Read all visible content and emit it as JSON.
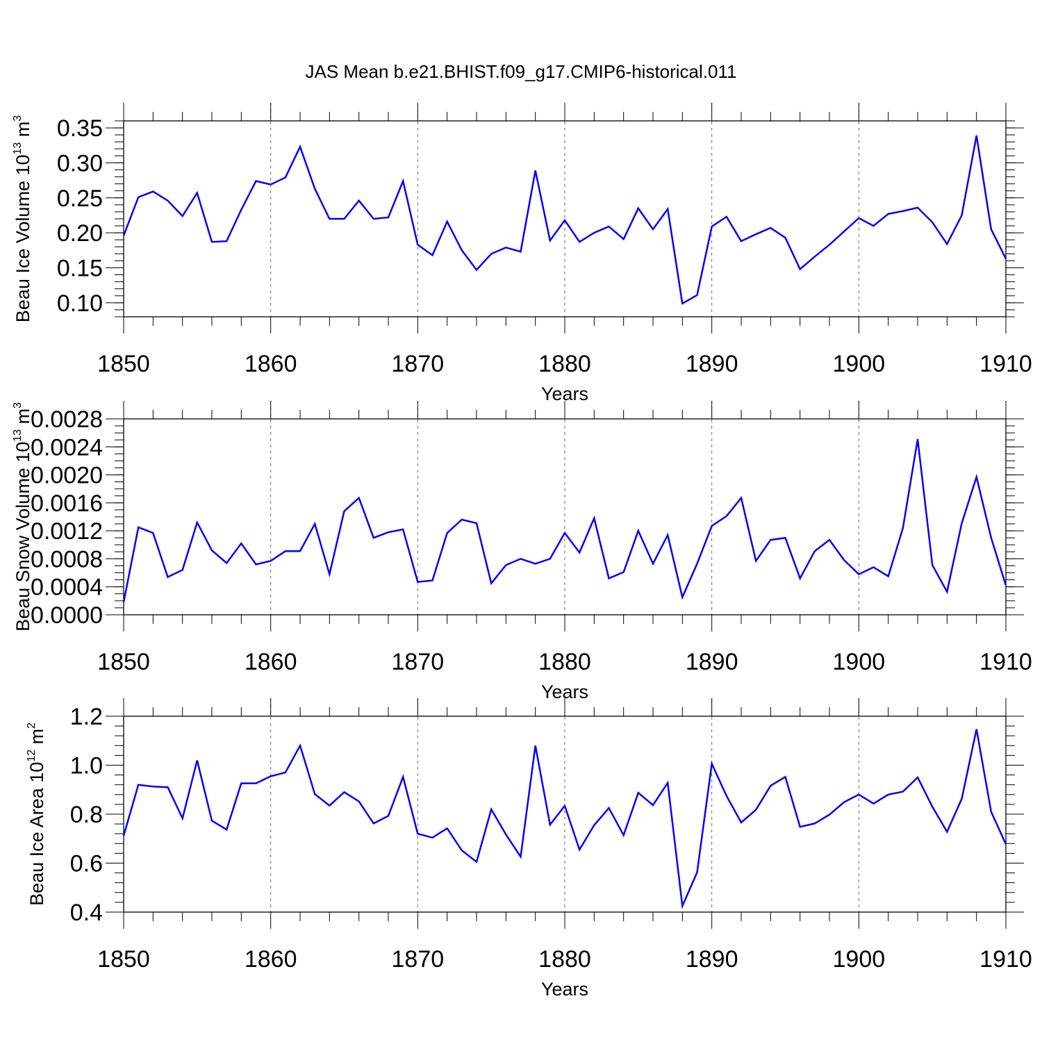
{
  "title": "JAS Mean b.e21.BHIST.f09_g17.CMIP6-historical.011",
  "chart_data": [
    {
      "type": "line",
      "name": "ice-volume",
      "ylabel": "Beau Ice Volume 10",
      "ylabel_exp": "13",
      "ylabel_unit": " m",
      "ylabel_unit_exp": "3",
      "xlabel": "Years",
      "xlim": [
        1850,
        1910
      ],
      "ylim": [
        0.08,
        0.36
      ],
      "x_ticks": [
        1850,
        1860,
        1870,
        1880,
        1890,
        1900,
        1910
      ],
      "y_ticks": [
        0.1,
        0.15,
        0.2,
        0.25,
        0.3,
        0.35
      ],
      "y_tick_labels": [
        "0.10",
        "0.15",
        "0.20",
        "0.25",
        "0.30",
        "0.35"
      ],
      "y_minor_step": 0.01,
      "x_start": 1850,
      "values": [
        0.196,
        0.251,
        0.259,
        0.246,
        0.224,
        0.257,
        0.187,
        0.188,
        0.233,
        0.274,
        0.269,
        0.279,
        0.323,
        0.263,
        0.22,
        0.22,
        0.246,
        0.22,
        0.222,
        0.274,
        0.183,
        0.168,
        0.216,
        0.175,
        0.147,
        0.17,
        0.179,
        0.173,
        0.289,
        0.189,
        0.218,
        0.187,
        0.2,
        0.209,
        0.191,
        0.235,
        0.205,
        0.234,
        0.099,
        0.111,
        0.209,
        0.223,
        0.188,
        0.198,
        0.207,
        0.193,
        0.148,
        0.166,
        0.183,
        0.202,
        0.221,
        0.21,
        0.227,
        0.231,
        0.236,
        0.215,
        0.184,
        0.225,
        0.339,
        0.205,
        0.163
      ]
    },
    {
      "type": "line",
      "name": "snow-volume",
      "ylabel": "Beau Snow Volume 10",
      "ylabel_exp": "13",
      "ylabel_unit": " m",
      "ylabel_unit_exp": "3",
      "xlabel": "Years",
      "xlim": [
        1850,
        1910
      ],
      "ylim": [
        0.0,
        0.0028
      ],
      "x_ticks": [
        1850,
        1860,
        1870,
        1880,
        1890,
        1900,
        1910
      ],
      "y_ticks": [
        0.0,
        0.0004,
        0.0008,
        0.0012,
        0.0016,
        0.002,
        0.0024,
        0.0028
      ],
      "y_tick_labels": [
        "0.0000",
        "0.0004",
        "0.0008",
        "0.0012",
        "0.0016",
        "0.0020",
        "0.0024",
        "0.0028"
      ],
      "y_minor_step": 0.0001,
      "x_start": 1850,
      "values": [
        0.00018,
        0.00125,
        0.00117,
        0.00054,
        0.00064,
        0.00132,
        0.00092,
        0.00074,
        0.00102,
        0.00072,
        0.00077,
        0.00091,
        0.00091,
        0.0013,
        0.00058,
        0.00148,
        0.00167,
        0.0011,
        0.00118,
        0.00122,
        0.00047,
        0.00049,
        0.00117,
        0.00136,
        0.00131,
        0.00045,
        0.00071,
        0.0008,
        0.00073,
        0.0008,
        0.00117,
        0.00089,
        0.00138,
        0.00052,
        0.00061,
        0.0012,
        0.00073,
        0.00114,
        0.00025,
        0.00073,
        0.00127,
        0.00141,
        0.00167,
        0.00077,
        0.00107,
        0.0011,
        0.00052,
        0.00091,
        0.00107,
        0.00078,
        0.00058,
        0.00068,
        0.00055,
        0.00124,
        0.00251,
        0.00071,
        0.00033,
        0.00131,
        0.00197,
        0.0011,
        0.00042
      ]
    },
    {
      "type": "line",
      "name": "ice-area",
      "ylabel": "Beau Ice Area 10",
      "ylabel_exp": "12",
      "ylabel_unit": " m",
      "ylabel_unit_exp": "2",
      "xlabel": "Years",
      "xlim": [
        1850,
        1910
      ],
      "ylim": [
        0.4,
        1.2
      ],
      "x_ticks": [
        1850,
        1860,
        1870,
        1880,
        1890,
        1900,
        1910
      ],
      "y_ticks": [
        0.4,
        0.6,
        0.8,
        1.0,
        1.2
      ],
      "y_tick_labels": [
        "0.4",
        "0.6",
        "0.8",
        "1.0",
        "1.2"
      ],
      "y_minor_step": 0.04,
      "x_start": 1850,
      "values": [
        0.712,
        0.92,
        0.913,
        0.91,
        0.783,
        1.02,
        0.773,
        0.737,
        0.926,
        0.926,
        0.955,
        0.97,
        1.08,
        0.882,
        0.835,
        0.89,
        0.852,
        0.762,
        0.793,
        0.952,
        0.72,
        0.704,
        0.742,
        0.652,
        0.605,
        0.82,
        0.717,
        0.626,
        1.08,
        0.757,
        0.834,
        0.655,
        0.755,
        0.825,
        0.714,
        0.887,
        0.837,
        0.928,
        0.425,
        0.562,
        1.006,
        0.875,
        0.766,
        0.818,
        0.916,
        0.952,
        0.748,
        0.762,
        0.798,
        0.849,
        0.88,
        0.843,
        0.88,
        0.892,
        0.95,
        0.83,
        0.728,
        0.863,
        1.147,
        0.81,
        0.677
      ]
    }
  ]
}
